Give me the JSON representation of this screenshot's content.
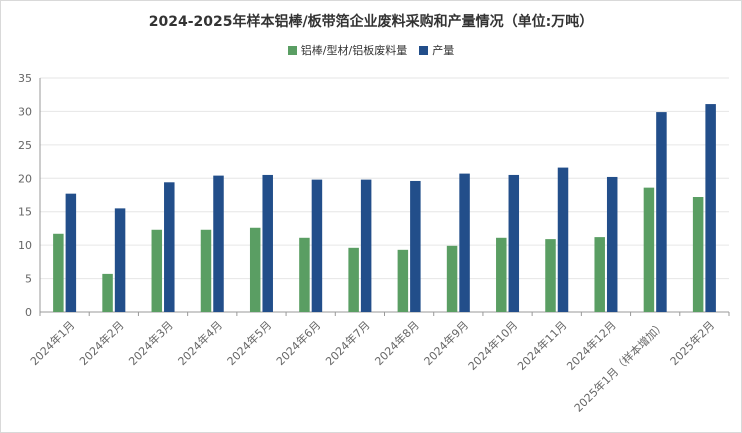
{
  "colors": {
    "green": "#5a9e63",
    "blue": "#224e8a",
    "grid": "#e6e6e6",
    "axis": "#999999"
  },
  "chart_data": {
    "type": "bar",
    "title": "2024-2025年样本铝棒/板带箔企业废料采购和产量情况（单位:万吨）",
    "categories": [
      "2024年1月",
      "2024年2月",
      "2024年3月",
      "2024年4月",
      "2024年5月",
      "2024年6月",
      "2024年7月",
      "2024年8月",
      "2024年9月",
      "2024年10月",
      "2024年11月",
      "2024年12月",
      "2025年1月（样本增加）",
      "2025年2月"
    ],
    "series": [
      {
        "name": "铝棒/型材/铝板废料量",
        "color": "#5a9e63",
        "values": [
          11.7,
          5.7,
          12.3,
          12.3,
          12.6,
          11.1,
          9.6,
          9.3,
          9.9,
          11.1,
          10.9,
          11.2,
          18.6,
          17.2
        ]
      },
      {
        "name": "产量",
        "color": "#224e8a",
        "values": [
          17.7,
          15.5,
          19.4,
          20.4,
          20.5,
          19.8,
          19.8,
          19.6,
          20.7,
          20.5,
          21.6,
          20.2,
          29.9,
          31.1
        ]
      }
    ],
    "ylim": [
      0,
      35
    ],
    "yticks": [
      0,
      5,
      10,
      15,
      20,
      25,
      30,
      35
    ],
    "grid": true,
    "legend": "top-center"
  }
}
